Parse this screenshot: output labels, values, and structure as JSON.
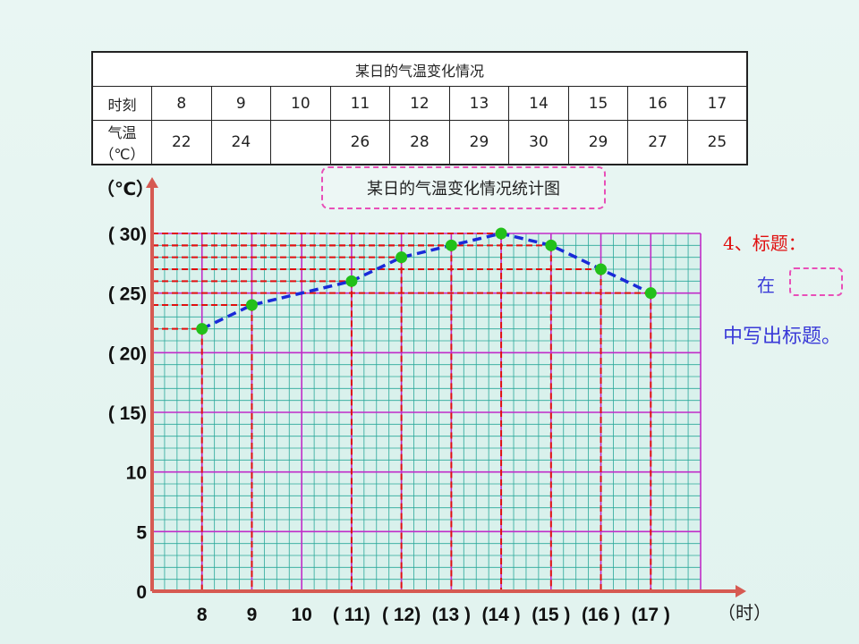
{
  "table": {
    "caption": "某日的气温变化情况",
    "row_time_label": "时刻",
    "row_temp_label": "气温（℃）",
    "times": [
      "8",
      "9",
      "10",
      "11",
      "12",
      "13",
      "14",
      "15",
      "16",
      "17"
    ],
    "temps": [
      "22",
      "24",
      "",
      "26",
      "28",
      "29",
      "30",
      "29",
      "27",
      "25"
    ]
  },
  "chart_title": "某日的气温变化情况统计图",
  "side_note": {
    "heading": "4、标题：",
    "in": "在",
    "write": "中写出标题。"
  },
  "chart_data": {
    "type": "line",
    "title": "某日的气温变化情况统计图",
    "ylabel": "（℃）",
    "xlabel": "（时）",
    "ylim": [
      0,
      30
    ],
    "xlim": [
      7,
      18
    ],
    "y_ticks": [
      {
        "value": 0,
        "label": "0"
      },
      {
        "value": 5,
        "label": "5"
      },
      {
        "value": 10,
        "label": "10"
      },
      {
        "value": 15,
        "label": "( 15)"
      },
      {
        "value": 20,
        "label": "( 20)"
      },
      {
        "value": 25,
        "label": "( 25)"
      },
      {
        "value": 30,
        "label": "( 30)"
      }
    ],
    "x_ticks": [
      {
        "value": 8,
        "label": "8"
      },
      {
        "value": 9,
        "label": "9"
      },
      {
        "value": 10,
        "label": "10"
      },
      {
        "value": 11,
        "label": "( 11)"
      },
      {
        "value": 12,
        "label": "( 12)"
      },
      {
        "value": 13,
        "label": "(13 )"
      },
      {
        "value": 14,
        "label": "(14 )"
      },
      {
        "value": 15,
        "label": "(15 )"
      },
      {
        "value": 16,
        "label": "(16 )"
      },
      {
        "value": 17,
        "label": "(17 )"
      }
    ],
    "series": [
      {
        "x": [
          8,
          9,
          11,
          12,
          13,
          14,
          15,
          16,
          17
        ],
        "y": [
          22,
          24,
          26,
          28,
          29,
          30,
          29,
          27,
          25
        ]
      }
    ],
    "grid": true,
    "colors": {
      "grid_minor": "#2aa89a",
      "grid_major": "#c02cc8",
      "line": "#1a2ad8",
      "point": "#22c01a",
      "guide": "#e01010",
      "axis": "#d65a52"
    }
  }
}
